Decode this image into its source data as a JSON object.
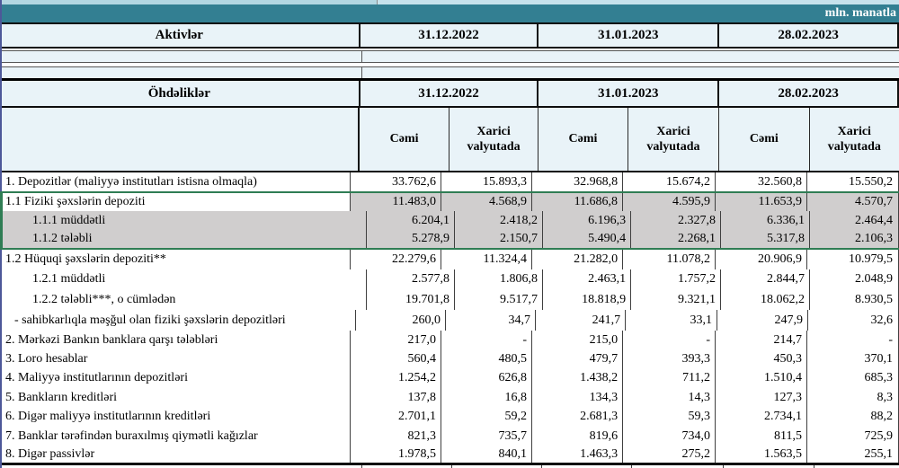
{
  "meta": {
    "unit_label": "mln. manatla"
  },
  "colors": {
    "teal_band": "#337F92",
    "header_row_bg": "#E9F3F8",
    "highlight_gray": "#D0CECE",
    "green_outline": "#2F7D54",
    "top_strip": "#ADD4DF",
    "left_edge_line": "#4D5899"
  },
  "assets": {
    "title": "Aktivlər",
    "dates": [
      "31.12.2022",
      "31.01.2023",
      "28.02.2023"
    ]
  },
  "liabilities": {
    "title": "Öhdəliklər",
    "dates": [
      "31.12.2022",
      "31.01.2023",
      "28.02.2023"
    ],
    "col_total": "Cəmi",
    "col_foreign": "Xarici valyutada",
    "rows": [
      {
        "label": "1. Depozitlər (maliyyə institutları istisna olmaqla)",
        "indent": 0,
        "highlight": "none",
        "values": [
          "33.762,6",
          "15.893,3",
          "32.968,8",
          "15.674,2",
          "32.560,8",
          "15.550,2"
        ]
      },
      {
        "label": "1.1 Fiziki şəxslərin depoziti",
        "indent": 0,
        "highlight": "values-gray",
        "values": [
          "11.483,0",
          "4.568,9",
          "11.686,8",
          "4.595,9",
          "11.653,9",
          "4.570,7"
        ]
      },
      {
        "label": "1.1.1 müddətli",
        "indent": 1,
        "highlight": "row-gray",
        "values": [
          "6.204,1",
          "2.418,2",
          "6.196,3",
          "2.327,8",
          "6.336,1",
          "2.464,4"
        ]
      },
      {
        "label": "1.1.2 tələbli",
        "indent": 1,
        "highlight": "row-gray",
        "values": [
          "5.278,9",
          "2.150,7",
          "5.490,4",
          "2.268,1",
          "5.317,8",
          "2.106,3"
        ]
      },
      {
        "label": "1.2 Hüquqi şəxslərin depoziti**",
        "indent": 0,
        "highlight": "none",
        "values": [
          "22.279,6",
          "11.324,4",
          "21.282,0",
          "11.078,2",
          "20.906,9",
          "10.979,5"
        ]
      },
      {
        "label": "1.2.1 müddətli",
        "indent": 1,
        "highlight": "none",
        "values": [
          "2.577,8",
          "1.806,8",
          "2.463,1",
          "1.757,2",
          "2.844,7",
          "2.048,9"
        ]
      },
      {
        "label": "1.2.2 tələbli***, o cümlədən",
        "indent": 1,
        "highlight": "none",
        "values": [
          "19.701,8",
          "9.517,7",
          "18.818,9",
          "9.321,1",
          "18.062,2",
          "8.930,5"
        ]
      },
      {
        "label": "- sahibkarlıqla məşğul olan fiziki şəxslərin depozitləri",
        "indent": 2,
        "highlight": "none",
        "values": [
          "260,0",
          "34,7",
          "241,7",
          "33,1",
          "247,9",
          "32,6"
        ]
      },
      {
        "label": "2. Mərkəzi Bankın banklara qarşı tələbləri",
        "indent": 0,
        "highlight": "none",
        "values": [
          "217,0",
          "-",
          "215,0",
          "-",
          "214,7",
          "-"
        ]
      },
      {
        "label": "3. Loro hesablar",
        "indent": 0,
        "highlight": "none",
        "values": [
          "560,4",
          "480,5",
          "479,7",
          "393,3",
          "450,3",
          "370,1"
        ]
      },
      {
        "label": "4. Maliyyə institutlarının  depozitləri",
        "indent": 0,
        "highlight": "none",
        "values": [
          "1.254,2",
          "626,8",
          "1.438,2",
          "711,2",
          "1.510,4",
          "685,3"
        ]
      },
      {
        "label": "5. Bankların kreditləri",
        "indent": 0,
        "highlight": "none",
        "values": [
          "137,8",
          "16,8",
          "134,3",
          "14,3",
          "127,3",
          "8,3"
        ]
      },
      {
        "label": "6. Digər maliyyə institutlarının kreditləri",
        "indent": 0,
        "highlight": "none",
        "values": [
          "2.701,1",
          "59,2",
          "2.681,3",
          "59,3",
          "2.734,1",
          "88,2"
        ]
      },
      {
        "label": "7. Banklar tərəfindən buraxılmış qiymətli kağızlar",
        "indent": 0,
        "highlight": "none",
        "values": [
          "821,3",
          "735,7",
          "819,6",
          "734,0",
          "811,5",
          "725,9"
        ]
      },
      {
        "label": "8. Digər passivlər",
        "indent": 0,
        "highlight": "none",
        "values": [
          "1.978,5",
          "840,1",
          "1.463,3",
          "275,2",
          "1.563,5",
          "255,1"
        ]
      }
    ]
  }
}
